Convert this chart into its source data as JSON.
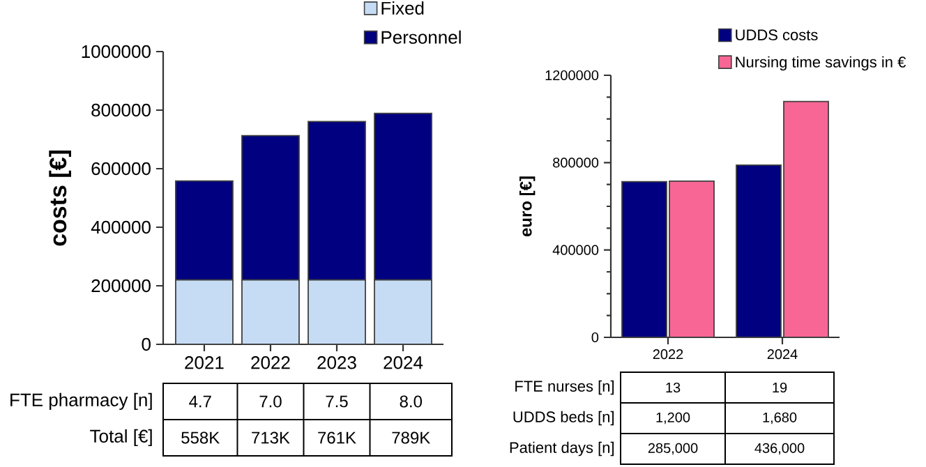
{
  "chart_data": [
    {
      "type": "bar",
      "stacked": true,
      "ylabel": "costs [€]",
      "categories": [
        "2021",
        "2022",
        "2023",
        "2024"
      ],
      "series": [
        {
          "name": "Fixed",
          "color": "#c6dcf5",
          "values": [
            220000,
            220000,
            220000,
            220000
          ]
        },
        {
          "name": "Personnel",
          "color": "#000080",
          "values": [
            338000,
            493000,
            541000,
            569000
          ]
        }
      ],
      "ylim": [
        0,
        1000000
      ],
      "yticks": [
        0,
        200000,
        400000,
        600000,
        800000,
        1000000
      ],
      "legend": "top right",
      "annotations": [
        "FTE pharmacy [n]",
        "4.7",
        "7.0",
        "7.5",
        "8.0",
        "Total [€]",
        "558K",
        "713K",
        "761K",
        "789K"
      ]
    },
    {
      "type": "bar",
      "ylabel": "euro [€]",
      "categories": [
        "2022",
        "2024"
      ],
      "series": [
        {
          "name": "UDDS costs",
          "color": "#000080",
          "values": [
            713000,
            789000
          ]
        },
        {
          "name": "Nursing time savings in €",
          "color": "#f76694",
          "values": [
            715000,
            1080000
          ]
        }
      ],
      "ylim": [
        0,
        1200000
      ],
      "yticks": [
        0,
        400000,
        800000,
        1200000
      ],
      "legend": "top right",
      "annotations": [
        "FTE nurses [n]",
        "13",
        "19",
        "UDDS beds [n]",
        "1,200",
        "1,680",
        "Patient days [n]",
        "285,000",
        "436,000"
      ]
    }
  ]
}
